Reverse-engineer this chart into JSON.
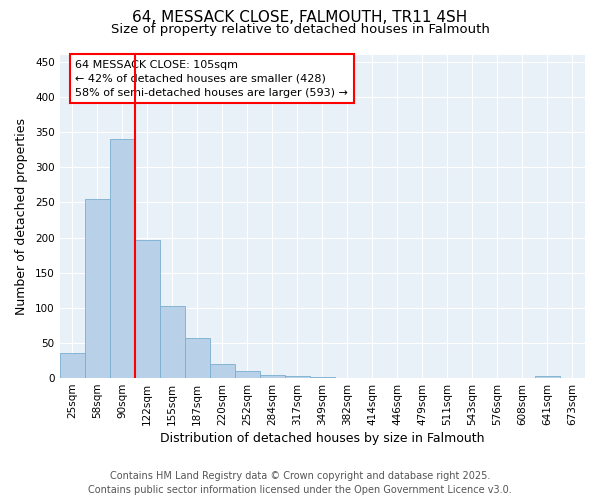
{
  "title": "64, MESSACK CLOSE, FALMOUTH, TR11 4SH",
  "subtitle": "Size of property relative to detached houses in Falmouth",
  "xlabel": "Distribution of detached houses by size in Falmouth",
  "ylabel": "Number of detached properties",
  "bar_labels": [
    "25sqm",
    "58sqm",
    "90sqm",
    "122sqm",
    "155sqm",
    "187sqm",
    "220sqm",
    "252sqm",
    "284sqm",
    "317sqm",
    "349sqm",
    "382sqm",
    "414sqm",
    "446sqm",
    "479sqm",
    "511sqm",
    "543sqm",
    "576sqm",
    "608sqm",
    "641sqm",
    "673sqm"
  ],
  "bar_values": [
    35,
    255,
    340,
    197,
    103,
    57,
    20,
    10,
    5,
    3,
    2,
    0,
    0,
    0,
    0,
    0,
    0,
    0,
    0,
    3,
    0
  ],
  "bar_color": "#b8d0e8",
  "bar_edge_color": "#7aaed0",
  "red_line_x": 2.5,
  "annotation_line1": "64 MESSACK CLOSE: 105sqm",
  "annotation_line2": "← 42% of detached houses are smaller (428)",
  "annotation_line3": "58% of semi-detached houses are larger (593) →",
  "ylim": [
    0,
    460
  ],
  "yticks": [
    0,
    50,
    100,
    150,
    200,
    250,
    300,
    350,
    400,
    450
  ],
  "footnote1": "Contains HM Land Registry data © Crown copyright and database right 2025.",
  "footnote2": "Contains public sector information licensed under the Open Government Licence v3.0.",
  "bg_color": "#ffffff",
  "plot_bg_color": "#e8f0f8",
  "title_fontsize": 11,
  "subtitle_fontsize": 9.5,
  "axis_label_fontsize": 9,
  "tick_fontsize": 7.5,
  "annotation_fontsize": 8,
  "footnote_fontsize": 7
}
